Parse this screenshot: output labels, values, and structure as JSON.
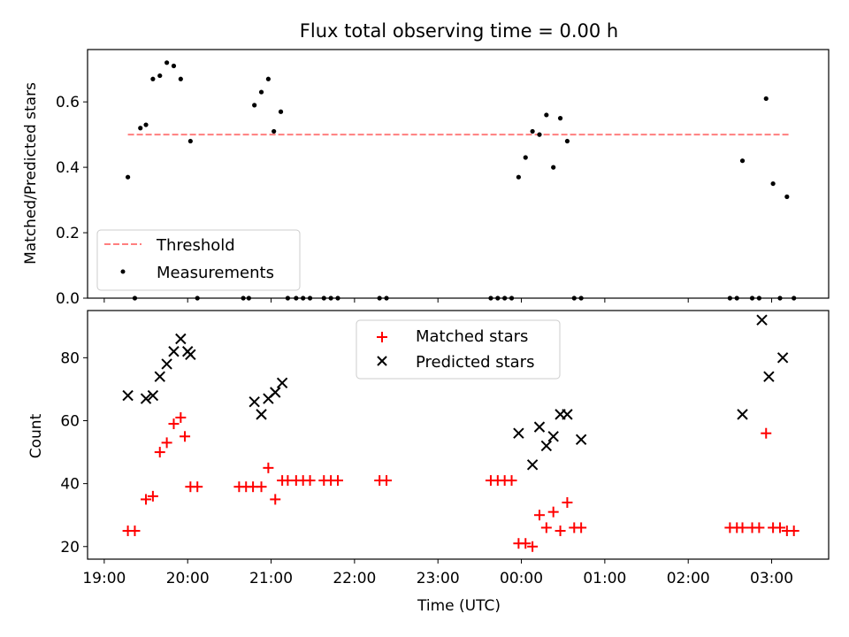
{
  "chart_data": [
    {
      "type": "scatter",
      "title": "Flux total observing time = 0.00 h",
      "xlabel": "",
      "ylabel": "Matched/Predicted stars",
      "ylim": [
        0,
        0.76
      ],
      "xlim": [
        "18:48",
        "03:41"
      ],
      "grid": false,
      "legend_position": "lower-left",
      "yticks": [
        "0.0",
        "0.2",
        "0.4",
        "0.6"
      ],
      "threshold": {
        "name": "Threshold",
        "value": 0.5,
        "x_start": "19:17",
        "x_end": "03:13",
        "color": "#ff7f7f"
      },
      "series": [
        {
          "name": "Measurements",
          "color": "#000000",
          "x": [
            "19:17",
            "19:22",
            "19:26",
            "19:30",
            "19:35",
            "19:40",
            "19:45",
            "19:50",
            "19:55",
            "20:02",
            "20:07",
            "20:40",
            "20:44",
            "20:48",
            "20:53",
            "20:58",
            "21:02",
            "21:07",
            "21:12",
            "21:18",
            "21:23",
            "21:28",
            "21:38",
            "21:43",
            "21:48",
            "22:18",
            "22:23",
            "23:38",
            "23:43",
            "23:48",
            "23:53",
            "23:58",
            "00:03",
            "00:08",
            "00:13",
            "00:18",
            "00:23",
            "00:28",
            "00:33",
            "00:38",
            "00:43",
            "02:30",
            "02:35",
            "02:39",
            "02:46",
            "02:51",
            "02:56",
            "03:01",
            "03:06",
            "03:11",
            "03:16"
          ],
          "y": [
            0.37,
            0.0,
            0.52,
            0.53,
            0.67,
            0.68,
            0.72,
            0.71,
            0.67,
            0.48,
            0.0,
            0.0,
            0.0,
            0.59,
            0.63,
            0.67,
            0.51,
            0.57,
            0.0,
            0.0,
            0.0,
            0.0,
            0.0,
            0.0,
            0.0,
            0.0,
            0.0,
            0.0,
            0.0,
            0.0,
            0.0,
            0.37,
            0.43,
            0.51,
            0.5,
            0.56,
            0.4,
            0.55,
            0.48,
            0.0,
            0.0,
            0.0,
            0.0,
            0.42,
            0.0,
            0.0,
            0.61,
            0.35,
            0.0,
            0.31,
            0.0
          ]
        }
      ]
    },
    {
      "type": "scatter",
      "title": "",
      "xlabel": "Time (UTC)",
      "ylabel": "Count",
      "ylim": [
        16,
        95
      ],
      "xlim": [
        "18:48",
        "03:41"
      ],
      "grid": false,
      "legend_position": "upper-center",
      "yticks": [
        "20",
        "40",
        "60",
        "80"
      ],
      "xticks": [
        "19:00",
        "20:00",
        "21:00",
        "22:00",
        "23:00",
        "00:00",
        "01:00",
        "02:00",
        "03:00"
      ],
      "series": [
        {
          "name": "Matched stars",
          "marker": "plus",
          "color": "#ff0000",
          "x": [
            "19:17",
            "19:22",
            "19:30",
            "19:35",
            "19:40",
            "19:45",
            "19:50",
            "19:55",
            "19:58",
            "20:02",
            "20:07",
            "20:37",
            "20:42",
            "20:47",
            "20:53",
            "20:58",
            "21:03",
            "21:08",
            "21:12",
            "21:18",
            "21:23",
            "21:28",
            "21:38",
            "21:43",
            "21:48",
            "22:18",
            "22:23",
            "23:38",
            "23:43",
            "23:48",
            "23:53",
            "23:58",
            "00:03",
            "00:08",
            "00:13",
            "00:18",
            "00:23",
            "00:28",
            "00:33",
            "00:38",
            "00:43",
            "02:30",
            "02:35",
            "02:39",
            "02:46",
            "02:51",
            "02:56",
            "03:01",
            "03:06",
            "03:11",
            "03:16"
          ],
          "y": [
            25,
            25,
            35,
            36,
            50,
            53,
            59,
            61,
            55,
            39,
            39,
            39,
            39,
            39,
            39,
            45,
            35,
            41,
            41,
            41,
            41,
            41,
            41,
            41,
            41,
            41,
            41,
            41,
            41,
            41,
            41,
            21,
            21,
            20,
            30,
            26,
            31,
            25,
            34,
            26,
            26,
            26,
            26,
            26,
            26,
            26,
            56,
            26,
            26,
            25,
            25
          ]
        },
        {
          "name": "Predicted stars",
          "marker": "x",
          "color": "#000000",
          "x": [
            "19:17",
            "19:30",
            "19:35",
            "19:40",
            "19:45",
            "19:50",
            "19:55",
            "20:00",
            "20:02",
            "20:48",
            "20:53",
            "20:58",
            "21:03",
            "21:08",
            "23:58",
            "00:08",
            "00:13",
            "00:18",
            "00:23",
            "00:28",
            "00:33",
            "00:43",
            "02:39",
            "02:53",
            "02:58",
            "03:08"
          ],
          "y": [
            68,
            67,
            68,
            74,
            78,
            82,
            86,
            82,
            81,
            66,
            62,
            67,
            69,
            72,
            56,
            46,
            58,
            52,
            55,
            62,
            62,
            54,
            62,
            92,
            74,
            80
          ]
        }
      ]
    }
  ]
}
